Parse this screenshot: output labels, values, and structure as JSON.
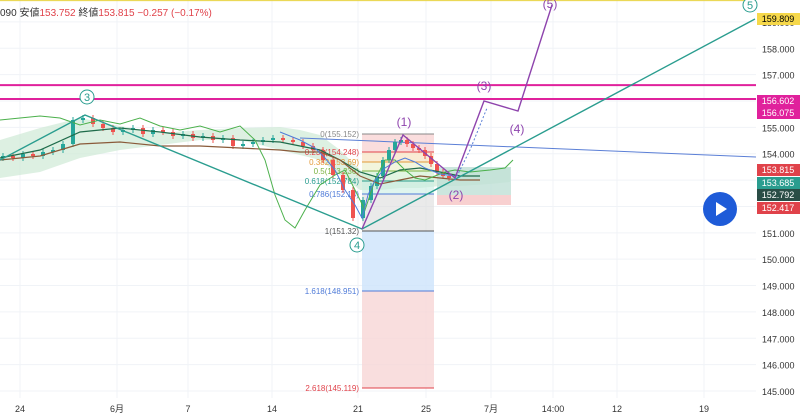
{
  "header": {
    "symbol_code": "090",
    "low_label": "安値",
    "low_value": "153.752",
    "close_label": "終値",
    "close_value": "153.815",
    "change": "−0.257",
    "change_pct": "(−0.17%)"
  },
  "chart_data": {
    "type": "candlestick",
    "y_range": [
      144.8,
      160.3
    ],
    "y_ticks": [
      "159.000",
      "158.000",
      "157.000",
      "156.000",
      "155.000",
      "154.000",
      "153.000",
      "152.000",
      "151.000",
      "150.000",
      "149.000",
      "148.000",
      "147.000",
      "146.000",
      "145.000"
    ],
    "x_ticks": [
      "24",
      "6月",
      "7",
      "14",
      "21",
      "25",
      "7月",
      "14:00",
      "12",
      "19"
    ],
    "price_labels": [
      {
        "value": "159.809",
        "color": "#f6d84a",
        "text_color": "#000000"
      },
      {
        "value": "156.602",
        "color": "#e0219c",
        "text_color": "#ffffff"
      },
      {
        "value": "156.075",
        "color": "#e0219c",
        "text_color": "#ffffff"
      },
      {
        "value": "153.815",
        "color": "#e0424a",
        "text_color": "#ffffff"
      },
      {
        "value": "153.685",
        "color": "#2a9d8f",
        "text_color": "#ffffff"
      },
      {
        "value": "152.792",
        "color": "#2a4d46",
        "text_color": "#ffffff"
      },
      {
        "value": "152.417",
        "color": "#e0424a",
        "text_color": "#ffffff"
      }
    ],
    "horizontal_levels": [
      {
        "price": 159.809,
        "color": "#e8d33f"
      },
      {
        "price": 156.602,
        "color": "#e0219c"
      },
      {
        "price": 156.075,
        "color": "#e0219c"
      }
    ],
    "fibonacci": [
      {
        "ratio": "0",
        "price": "155.152",
        "label": "0(155.152)"
      },
      {
        "ratio": "0.236",
        "price": "154.248",
        "label": "0.236(154.248)"
      },
      {
        "ratio": "0.382",
        "price": "153.690",
        "label": "0.382(153.69)"
      },
      {
        "ratio": "0.5",
        "price": "153.236",
        "label": "0.5(153.236)"
      },
      {
        "ratio": "0.618",
        "price": "152.784",
        "label": "0.618(152.784)"
      },
      {
        "ratio": "0.786",
        "price": "152.140",
        "label": "0.786(152.14)"
      },
      {
        "ratio": "1",
        "price": "151.320",
        "label": "1(151.32)"
      },
      {
        "ratio": "1.618",
        "price": "148.951",
        "label": "1.618(148.951)"
      },
      {
        "ratio": "2.618",
        "price": "145.119",
        "label": "2.618(145.119)"
      }
    ],
    "elliott_main": [
      {
        "label": "3",
        "price": 155.9
      },
      {
        "label": "4",
        "price": 151.32
      },
      {
        "label": "5",
        "price": 159.809
      }
    ],
    "elliott_sub": [
      {
        "label": "(1)",
        "price": 155.15
      },
      {
        "label": "(2)",
        "price": 153.3
      },
      {
        "label": "(3)",
        "price": 156.6
      },
      {
        "label": "(4)",
        "price": 156.1
      },
      {
        "label": "(5)",
        "price": 160.5
      }
    ]
  }
}
